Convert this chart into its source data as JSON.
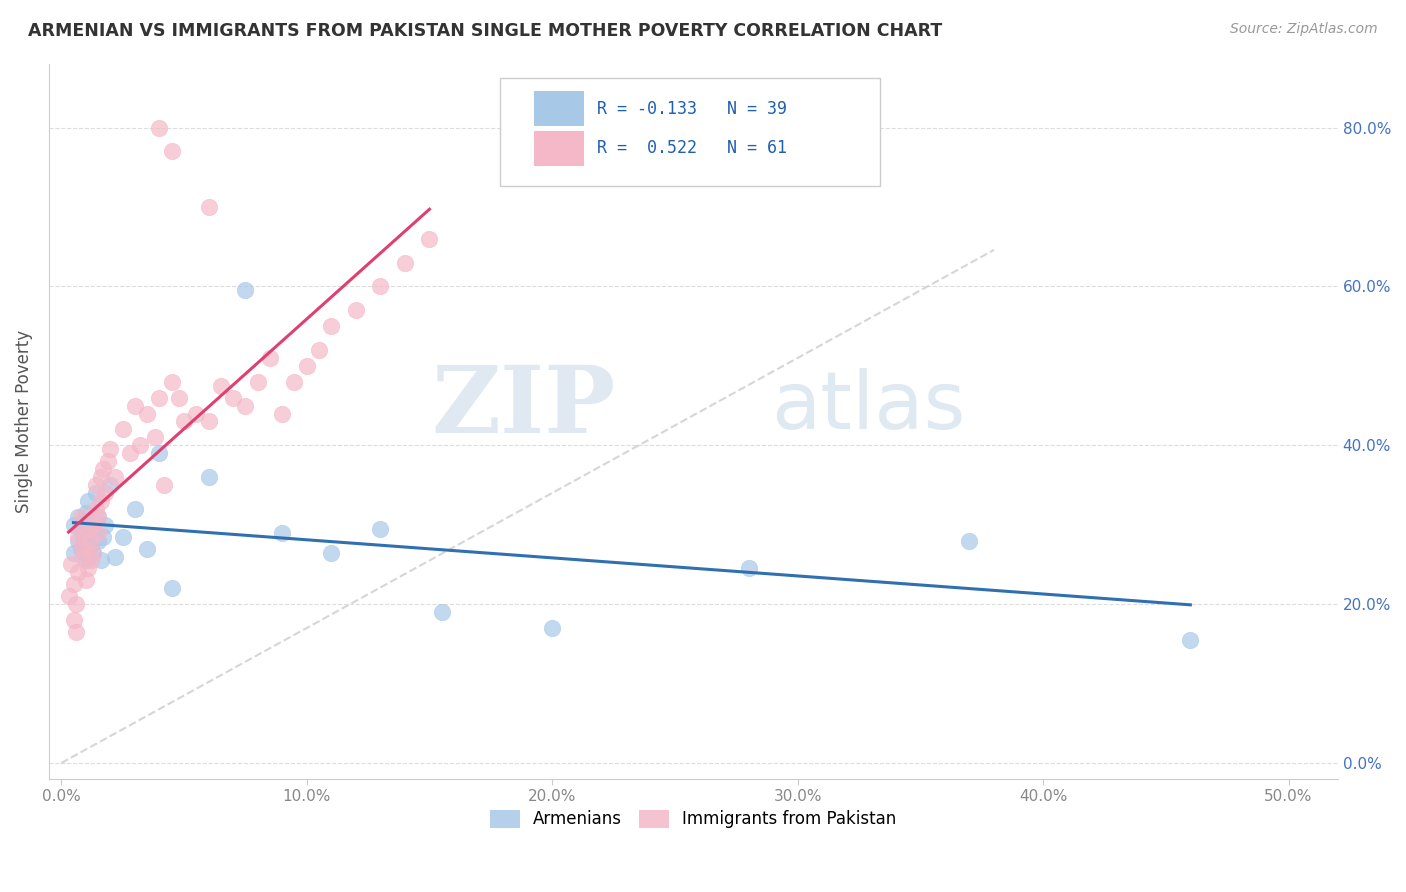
{
  "title": "ARMENIAN VS IMMIGRANTS FROM PAKISTAN SINGLE MOTHER POVERTY CORRELATION CHART",
  "source": "Source: ZipAtlas.com",
  "xlabel_ticks": [
    0.0,
    0.1,
    0.2,
    0.3,
    0.4,
    0.5
  ],
  "ylabel_ticks": [
    0.0,
    0.2,
    0.4,
    0.6,
    0.8
  ],
  "xlim": [
    -0.005,
    0.52
  ],
  "ylim": [
    -0.02,
    0.88
  ],
  "ylabel": "Single Mother Poverty",
  "watermark_zip": "ZIP",
  "watermark_atlas": "atlas",
  "legend_line1": "R = -0.133   N = 39",
  "legend_line2": "R =  0.522   N = 61",
  "legend_label_blue": "Armenians",
  "legend_label_pink": "Immigrants from Pakistan",
  "blue_color": "#a8c8e8",
  "pink_color": "#f4b8c8",
  "blue_line_color": "#3070b0",
  "pink_line_color": "#e04070",
  "title_color": "#333333",
  "source_color": "#999999",
  "tick_color_x": "#888888",
  "tick_color_y": "#4472c4",
  "grid_color": "#dddddd",
  "legend_text_color": "#2060b0",
  "armenians_x": [
    0.005,
    0.005,
    0.007,
    0.007,
    0.008,
    0.008,
    0.009,
    0.009,
    0.01,
    0.01,
    0.01,
    0.011,
    0.011,
    0.012,
    0.013,
    0.013,
    0.014,
    0.015,
    0.015,
    0.016,
    0.017,
    0.018,
    0.02,
    0.022,
    0.025,
    0.03,
    0.035,
    0.04,
    0.045,
    0.06,
    0.075,
    0.09,
    0.11,
    0.13,
    0.155,
    0.2,
    0.28,
    0.37,
    0.46
  ],
  "armenians_y": [
    0.265,
    0.3,
    0.28,
    0.31,
    0.295,
    0.27,
    0.305,
    0.285,
    0.255,
    0.29,
    0.315,
    0.26,
    0.33,
    0.275,
    0.295,
    0.265,
    0.34,
    0.28,
    0.31,
    0.255,
    0.285,
    0.3,
    0.35,
    0.26,
    0.285,
    0.32,
    0.27,
    0.39,
    0.22,
    0.36,
    0.595,
    0.29,
    0.265,
    0.295,
    0.19,
    0.17,
    0.245,
    0.28,
    0.155
  ],
  "pakistan_x": [
    0.003,
    0.004,
    0.005,
    0.005,
    0.006,
    0.006,
    0.007,
    0.007,
    0.008,
    0.008,
    0.009,
    0.009,
    0.01,
    0.01,
    0.011,
    0.011,
    0.012,
    0.012,
    0.013,
    0.013,
    0.014,
    0.014,
    0.015,
    0.015,
    0.016,
    0.016,
    0.017,
    0.018,
    0.019,
    0.02,
    0.022,
    0.025,
    0.028,
    0.03,
    0.032,
    0.035,
    0.038,
    0.04,
    0.042,
    0.045,
    0.048,
    0.05,
    0.055,
    0.06,
    0.065,
    0.07,
    0.075,
    0.08,
    0.085,
    0.09,
    0.095,
    0.1,
    0.105,
    0.11,
    0.12,
    0.13,
    0.14,
    0.15,
    0.06,
    0.045,
    0.04
  ],
  "pakistan_y": [
    0.21,
    0.25,
    0.18,
    0.225,
    0.165,
    0.2,
    0.285,
    0.24,
    0.27,
    0.31,
    0.26,
    0.29,
    0.23,
    0.27,
    0.245,
    0.295,
    0.255,
    0.28,
    0.265,
    0.3,
    0.32,
    0.35,
    0.29,
    0.31,
    0.33,
    0.36,
    0.37,
    0.34,
    0.38,
    0.395,
    0.36,
    0.42,
    0.39,
    0.45,
    0.4,
    0.44,
    0.41,
    0.46,
    0.35,
    0.48,
    0.46,
    0.43,
    0.44,
    0.43,
    0.475,
    0.46,
    0.45,
    0.48,
    0.51,
    0.44,
    0.48,
    0.5,
    0.52,
    0.55,
    0.57,
    0.6,
    0.63,
    0.66,
    0.7,
    0.77,
    0.8
  ]
}
